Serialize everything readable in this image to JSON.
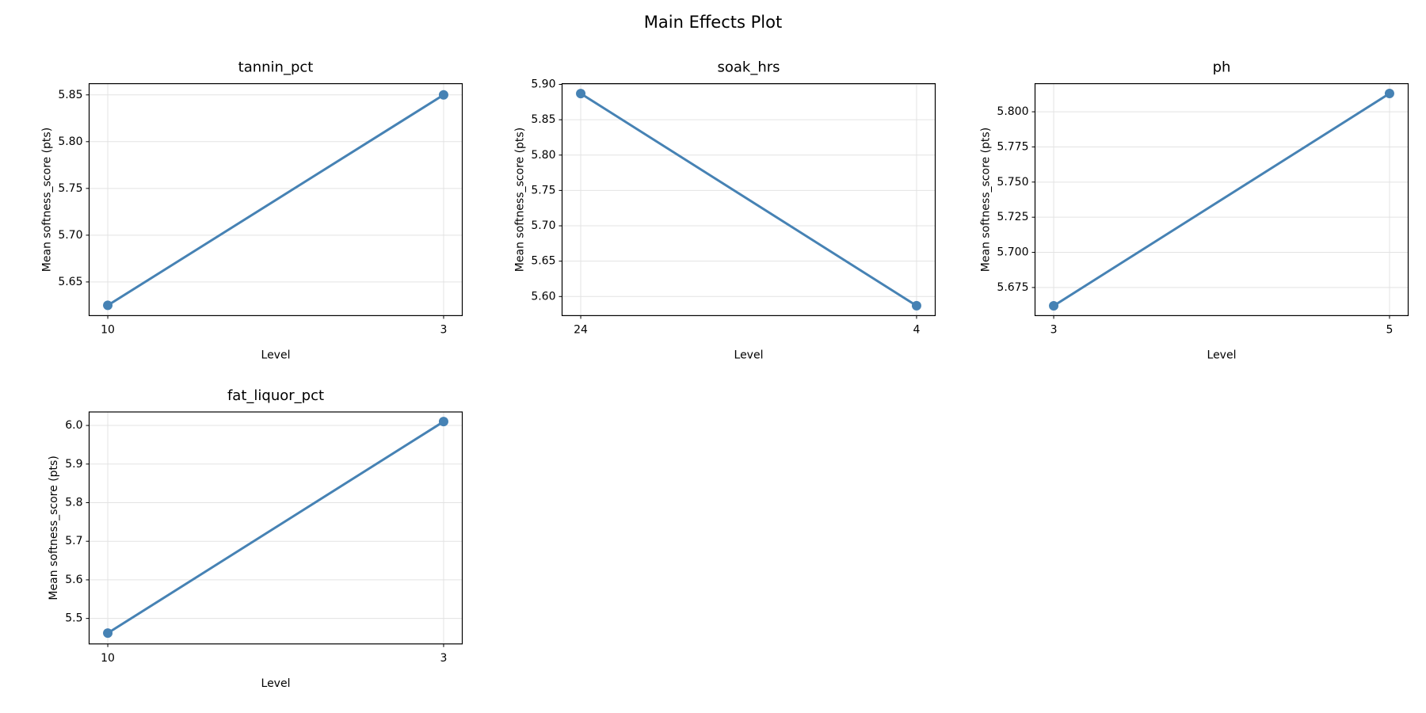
{
  "title": "Main Effects Plot",
  "chart_data": [
    {
      "type": "line",
      "title": "tannin_pct",
      "xlabel": "Level",
      "ylabel": "Mean softness_score (pts)",
      "categories": [
        "10",
        "3"
      ],
      "values": [
        5.625,
        5.85
      ],
      "color": "#4682b4",
      "ylim": [
        5.614,
        5.862
      ],
      "yticks": [
        5.65,
        {
          "value": 5.7,
          "label": "5.70"
        },
        5.75,
        {
          "value": 5.8,
          "label": "5.80"
        },
        5.85
      ],
      "grid": true
    },
    {
      "type": "line",
      "title": "soak_hrs",
      "xlabel": "Level",
      "ylabel": "Mean softness_score (pts)",
      "categories": [
        "24",
        "4"
      ],
      "values": [
        5.887,
        5.587
      ],
      "color": "#4682b4",
      "ylim": [
        5.573,
        5.901
      ],
      "yticks": [
        {
          "value": 5.6,
          "label": "5.60"
        },
        5.65,
        {
          "value": 5.7,
          "label": "5.70"
        },
        5.75,
        {
          "value": 5.8,
          "label": "5.80"
        },
        5.85,
        {
          "value": 5.9,
          "label": "5.90"
        }
      ],
      "grid": true
    },
    {
      "type": "line",
      "title": "ph",
      "xlabel": "Level",
      "ylabel": "Mean softness_score (pts)",
      "categories": [
        "3",
        "5"
      ],
      "values": [
        5.662,
        5.813
      ],
      "color": "#4682b4",
      "ylim": [
        5.655,
        5.82
      ],
      "yticks": [
        5.675,
        {
          "value": 5.7,
          "label": "5.700"
        },
        5.725,
        {
          "value": 5.75,
          "label": "5.750"
        },
        5.775,
        {
          "value": 5.8,
          "label": "5.800"
        }
      ],
      "grid": true
    },
    {
      "type": "line",
      "title": "fat_liquor_pct",
      "xlabel": "Level",
      "ylabel": "Mean softness_score (pts)",
      "categories": [
        "10",
        "3"
      ],
      "values": [
        5.462,
        6.01
      ],
      "color": "#4682b4",
      "ylim": [
        5.434,
        6.035
      ],
      "yticks": [
        5.5,
        5.6,
        5.7,
        5.8,
        5.9,
        {
          "value": 6,
          "label": "6.0"
        }
      ],
      "grid": true
    }
  ]
}
